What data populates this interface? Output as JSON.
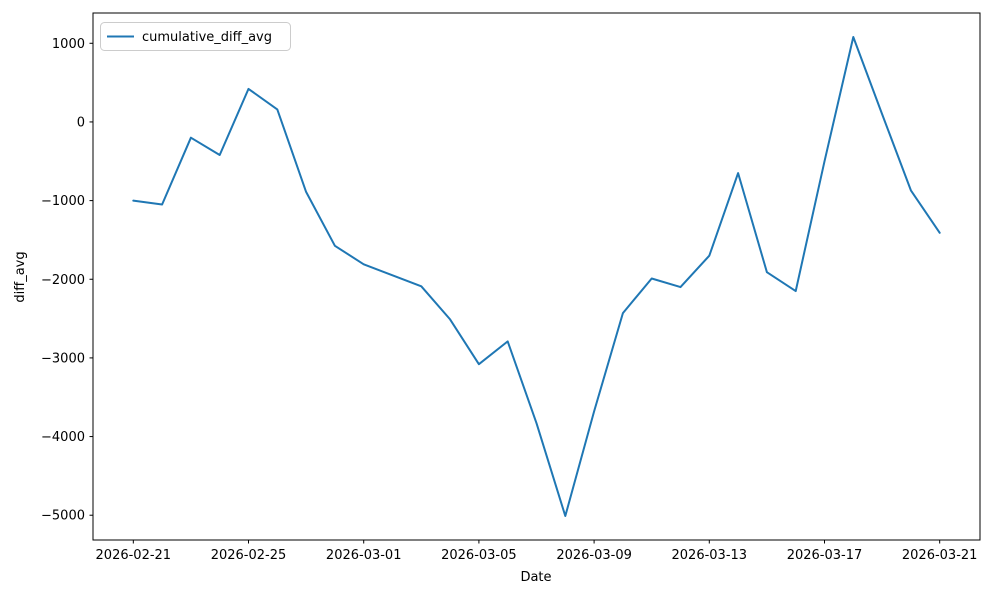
{
  "chart_data": {
    "type": "line",
    "title": "",
    "xlabel": "Date",
    "ylabel": "diff_avg",
    "grid": false,
    "background": "#ffffff",
    "axes_color": "#000000",
    "legend": {
      "position": "upper left",
      "border_color": "#cccccc",
      "entries": [
        "cumulative_diff_avg"
      ]
    },
    "series": [
      {
        "name": "cumulative_diff_avg",
        "color": "#1f77b4",
        "x": [
          "2026-02-21",
          "2026-02-22",
          "2026-02-23",
          "2026-02-24",
          "2026-02-25",
          "2026-02-26",
          "2026-02-27",
          "2026-02-28",
          "2026-03-01",
          "2026-03-02",
          "2026-03-03",
          "2026-03-04",
          "2026-03-05",
          "2026-03-06",
          "2026-03-07",
          "2026-03-08",
          "2026-03-09",
          "2026-03-10",
          "2026-03-11",
          "2026-03-12",
          "2026-03-13",
          "2026-03-14",
          "2026-03-15",
          "2026-03-16",
          "2026-03-17",
          "2026-03-18",
          "2026-03-19",
          "2026-03-20",
          "2026-03-21"
        ],
        "values": [
          -1000,
          -1050,
          -200,
          -420,
          420,
          160,
          -890,
          -1575,
          -1810,
          -1950,
          -2090,
          -2510,
          -3080,
          -2790,
          -3830,
          -5010,
          -3680,
          -2430,
          -1990,
          -2100,
          -1700,
          -650,
          -1910,
          -2150,
          -500,
          1080,
          100,
          -870,
          -1410
        ]
      }
    ],
    "x_tick_labels": [
      "2026-02-21",
      "2026-02-25",
      "2026-03-01",
      "2026-03-05",
      "2026-03-09",
      "2026-03-13",
      "2026-03-17",
      "2026-03-21"
    ],
    "x_tick_day_indices": [
      0,
      4,
      8,
      12,
      16,
      20,
      24,
      28
    ],
    "y_ticks": [
      1000,
      0,
      -1000,
      -2000,
      -3000,
      -4000,
      -5000
    ],
    "y_tick_labels": [
      "1000",
      "0",
      "−1000",
      "−2000",
      "−3000",
      "−4000",
      "−5000"
    ],
    "xlim_days": [
      -1.4,
      29.4
    ],
    "ylim": [
      -5315,
      1385
    ]
  }
}
